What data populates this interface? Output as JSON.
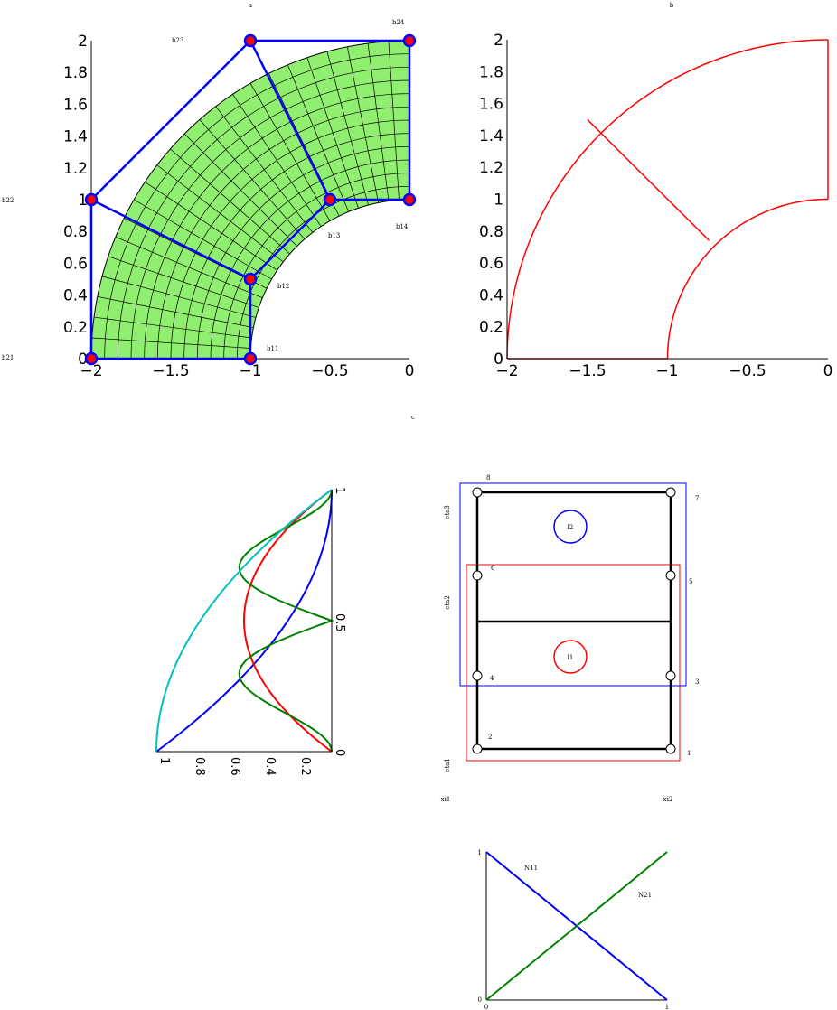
{
  "panels": {
    "a": {
      "label": "a",
      "x_ticks": [
        "−2",
        "−1.5",
        "−1",
        "−0.5",
        "0"
      ],
      "y_ticks": [
        "0",
        "0.2",
        "0.4",
        "0.6",
        "0.8",
        "1",
        "1.2",
        "1.4",
        "1.6",
        "1.8",
        "2"
      ],
      "control_points": [
        {
          "label": "b11",
          "x": -1.0,
          "y": 0.0
        },
        {
          "label": "b12",
          "x": -1.0,
          "y": 0.5
        },
        {
          "label": "b13",
          "x": -0.5,
          "y": 1.0
        },
        {
          "label": "b14",
          "x": 0.0,
          "y": 1.0
        },
        {
          "label": "b21",
          "x": -2.0,
          "y": 0.0
        },
        {
          "label": "b22",
          "x": -2.0,
          "y": 1.0
        },
        {
          "label": "b23",
          "x": -1.0,
          "y": 2.0
        },
        {
          "label": "b24",
          "x": 0.0,
          "y": 2.0
        }
      ],
      "colors": {
        "mesh_fill": "#90ee70",
        "control_net": "#0000ff",
        "point": "#ff0000"
      }
    },
    "b": {
      "label": "b",
      "x_ticks": [
        "−2",
        "−1.5",
        "−1",
        "−0.5",
        "0"
      ],
      "y_ticks": [
        "0",
        "0.2",
        "0.4",
        "0.6",
        "0.8",
        "1",
        "1.2",
        "1.4",
        "1.6",
        "1.8",
        "2"
      ],
      "colors": {
        "boundary": "#ff0000"
      }
    },
    "c": {
      "label": "c",
      "ticks": [
        "1",
        "0.8",
        "0.6",
        "0.4",
        "0.2",
        "0",
        "0.5",
        "1"
      ],
      "colors": [
        "#0000ff",
        "#ff0000",
        "#008000",
        "#00c0c0"
      ]
    },
    "d": {
      "axis_labels": {
        "eta3": "eta3",
        "eta2": "eta2",
        "eta1": "eta1",
        "xi1": "xi1",
        "xi2": "xi2"
      },
      "node_labels": [
        "1",
        "2",
        "3",
        "4",
        "5",
        "6",
        "7",
        "8"
      ],
      "element_labels": [
        "l1",
        "l2"
      ],
      "colors": {
        "element_1": "#ff0000",
        "element_2": "#0000ff"
      }
    },
    "e": {
      "labels": {
        "n11": "N11",
        "n21": "N21"
      },
      "ticks": {
        "y_top": "1",
        "y_bottom": "0",
        "x_left": "0",
        "x_right": "1"
      },
      "colors": {
        "n11": "#0000ff",
        "n21": "#008000"
      }
    }
  }
}
